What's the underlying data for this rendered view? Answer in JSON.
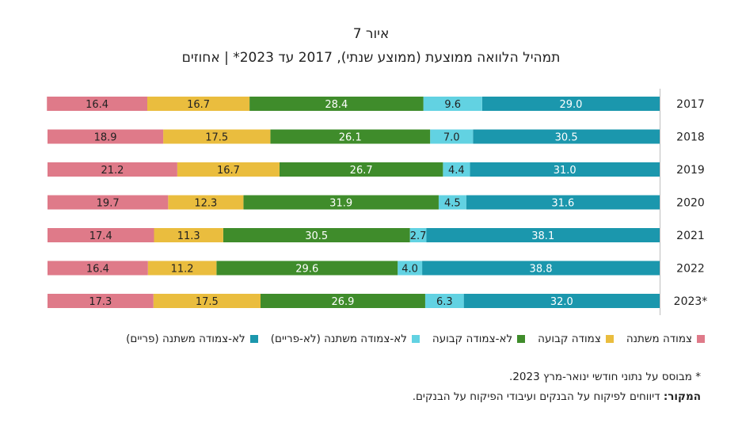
{
  "chart_data": {
    "type": "bar",
    "orientation": "horizontal",
    "stacked": true,
    "title": "איור 7",
    "subtitle": "תמהיל הלוואה ממוצעת (ממוצע שנתי), 2017 עד 2023* | אחוזים",
    "categories": [
      "2017",
      "2018",
      "2019",
      "2020",
      "2021",
      "2022",
      "2023*"
    ],
    "series": [
      {
        "name": "לא-צמודה משתנה (פריים)",
        "color": "#1b97ad",
        "values": [
          29.0,
          30.5,
          31.0,
          31.6,
          38.1,
          38.8,
          32.0
        ]
      },
      {
        "name": "לא-צמודה משתנה (לא-פריים)",
        "color": "#62d2e2",
        "values": [
          9.6,
          7.0,
          4.4,
          4.5,
          2.7,
          4.0,
          6.3
        ]
      },
      {
        "name": "לא-צמודה קבועה",
        "color": "#3f8c2b",
        "values": [
          28.4,
          26.1,
          26.7,
          31.9,
          30.5,
          29.6,
          26.9
        ]
      },
      {
        "name": "צמודה קבועה",
        "color": "#eabd3e",
        "values": [
          16.7,
          17.5,
          16.7,
          12.3,
          11.3,
          11.2,
          17.5
        ]
      },
      {
        "name": "צמודה משתנה",
        "color": "#df7a89",
        "values": [
          16.4,
          18.9,
          21.2,
          19.7,
          17.4,
          16.4,
          17.3
        ]
      }
    ],
    "xlim": [
      0,
      100
    ],
    "legend_position": "bottom",
    "direction": "rtl"
  },
  "footnote": "* מבוסס על נתוני חודשי ינואר-מרץ 2023.",
  "source_label": "המקור:",
  "source_text": " דיווחים לפיקוח על הבנקים ועיבודי הפיקוח על הבנקים."
}
